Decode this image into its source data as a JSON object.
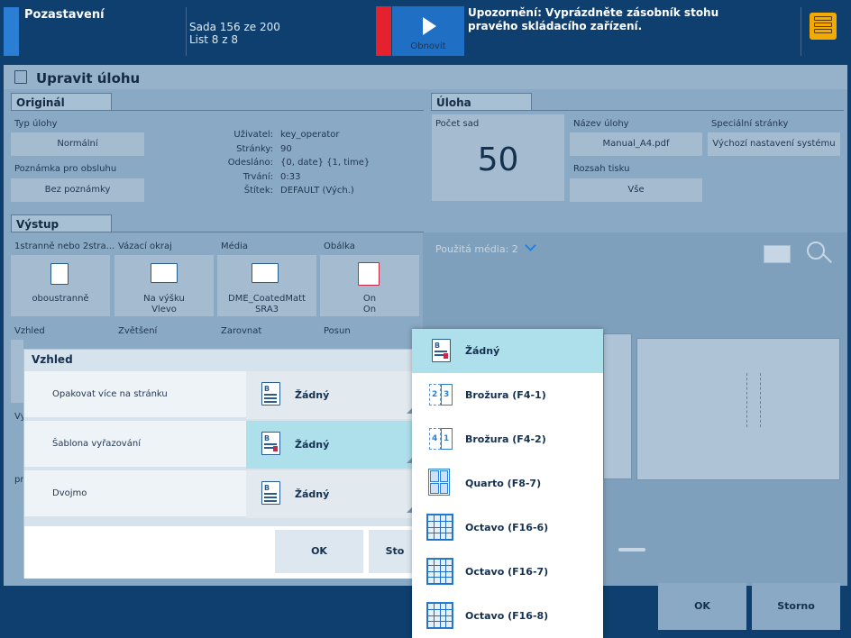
{
  "topbar": {
    "title": "Pozastavení",
    "set_status": "Sada 156 ze 200",
    "sheet_status": "List 8 z 8",
    "refresh_label": "Obnovit",
    "warning": "Upozornění: Vyprázdněte zásobník stohu pravého skládacího zařízení.",
    "accent_color": "#e4212c"
  },
  "header": {
    "title": "Upravit úlohu"
  },
  "original": {
    "tab": "Originál",
    "job_type_label": "Typ úlohy",
    "job_type_value": "Normální",
    "note_label": "Poznámka pro obsluhu",
    "note_value": "Bez poznámky",
    "info": [
      {
        "key": "Uživatel:",
        "value": "key_operator"
      },
      {
        "key": "Stránky:",
        "value": "90"
      },
      {
        "key": "Odesláno:",
        "value": "{0, date} {1, time}"
      },
      {
        "key": "Trvání:",
        "value": "0:33"
      },
      {
        "key": "Štítek:",
        "value": "DEFAULT (Vých.)"
      }
    ]
  },
  "job": {
    "tab": "Úloha",
    "sets_label": "Počet sad",
    "sets_value": "50",
    "name_label": "Název úlohy",
    "name_value": "Manual_A4.pdf",
    "range_label": "Rozsah tisku",
    "range_value": "Vše",
    "special_label": "Speciální stránky",
    "special_value": "Výchozí nastavení systému"
  },
  "output": {
    "tab": "Výstup",
    "row1": [
      {
        "label": "1stranně nebo 2stra...",
        "value": "oboustranně"
      },
      {
        "label": "Vázací okraj",
        "value1": "Na výšku",
        "value2": "Vlevo"
      },
      {
        "label": "Média",
        "value1": "DME_CoatedMatt",
        "value2": "SRA3"
      },
      {
        "label": "Obálka",
        "value1": "On",
        "value2": "On"
      }
    ],
    "row2": [
      "Vzhled",
      "Zvětšení",
      "Zarovnat",
      "Posun"
    ],
    "partial_1": "Vy",
    "partial_2": "pr"
  },
  "preview": {
    "media_used": "Použitá média: 2"
  },
  "dialog": {
    "title": "Vzhled",
    "rows": [
      {
        "label": "Opakovat více na stránku",
        "value": "Žádný"
      },
      {
        "label": "Šablona vyřazování",
        "value": "Žádný"
      },
      {
        "label": "Dvojmo",
        "value": "Žádný"
      }
    ],
    "ok": "OK",
    "cancel_partial": "Sto"
  },
  "dropdown": {
    "options": [
      {
        "label": "Žádný",
        "selected": true
      },
      {
        "label": "Brožura (F4-1)"
      },
      {
        "label": "Brožura (F4-2)"
      },
      {
        "label": "Quarto (F8-7)"
      },
      {
        "label": "Octavo (F16-6)"
      },
      {
        "label": "Octavo (F16-7)"
      },
      {
        "label": "Octavo (F16-8)"
      }
    ]
  },
  "footer": {
    "ok": "OK",
    "cancel": "Storno"
  }
}
